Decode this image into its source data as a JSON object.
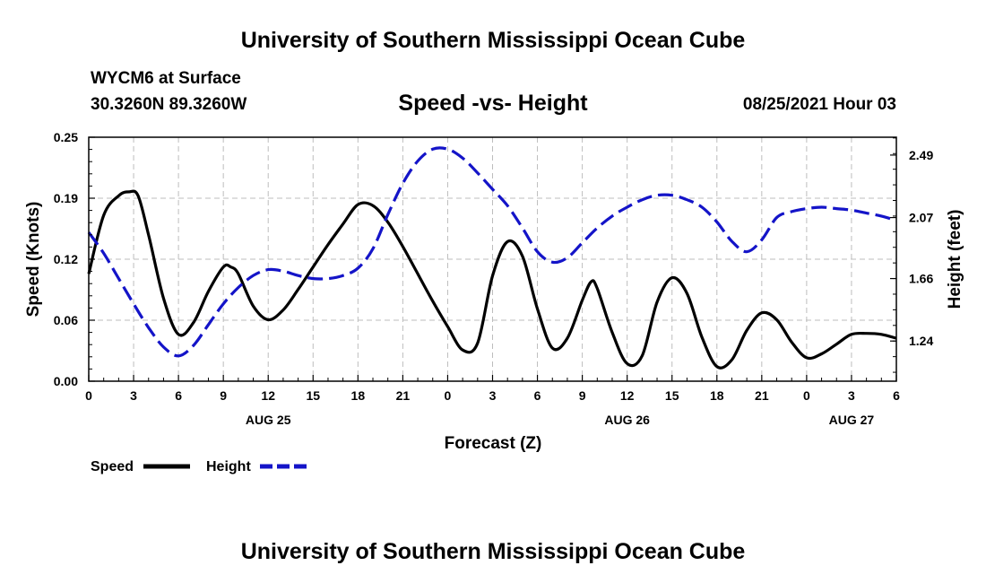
{
  "header": {
    "title": "University of Southern Mississippi Ocean Cube",
    "station": "WYCM6 at Surface",
    "coords": "30.3260N  89.3260W",
    "subtitle": "Speed -vs- Height",
    "datetime": "08/25/2021 Hour 03"
  },
  "footer": {
    "title": "University of Southern Mississippi Ocean Cube"
  },
  "chart_data": {
    "type": "line",
    "title": "Speed -vs- Height",
    "xlabel": "Forecast (Z)",
    "ylabel_left": "Speed (Knots)",
    "ylabel_right": "Height (feet)",
    "xlim": [
      0,
      54
    ],
    "ylim_left": [
      0,
      0.25
    ],
    "ylim_right": [
      0.97,
      2.61
    ],
    "grid": true,
    "colors": {
      "speed": "#000000",
      "height": "#1414c8",
      "grid": "#bdbdbd"
    },
    "x_tick_values": [
      0,
      3,
      6,
      9,
      12,
      15,
      18,
      21,
      24,
      27,
      30,
      33,
      36,
      39,
      42,
      45,
      48,
      51,
      54
    ],
    "x_tick_labels": [
      "0",
      "3",
      "6",
      "9",
      "12",
      "15",
      "18",
      "21",
      "0",
      "3",
      "6",
      "9",
      "12",
      "15",
      "18",
      "21",
      "0",
      "3",
      "6"
    ],
    "day_labels": [
      {
        "x": 12,
        "label": "AUG 25"
      },
      {
        "x": 36,
        "label": "AUG 26"
      },
      {
        "x": 51,
        "label": "AUG 27"
      }
    ],
    "left_ticks": [
      "0.00",
      "0.06",
      "0.12",
      "0.19",
      "0.25"
    ],
    "left_tick_values": [
      0.0,
      0.0625,
      0.125,
      0.1875,
      0.25
    ],
    "right_ticks": [
      "1.24",
      "1.66",
      "2.07",
      "2.49"
    ],
    "right_tick_values": [
      1.24,
      1.66,
      2.07,
      2.49
    ],
    "series": [
      {
        "name": "Speed",
        "axis": "left",
        "style": "solid",
        "x": [
          0,
          1,
          2,
          2.7,
          3.3,
          4,
          5,
          6,
          7,
          8,
          9,
          9.5,
          10,
          11,
          12,
          13,
          14,
          15,
          16,
          17,
          18,
          19,
          20,
          21,
          22,
          23,
          24,
          25,
          26,
          27,
          28,
          29,
          30,
          31,
          32,
          33,
          33.6,
          34,
          35,
          36,
          37,
          38,
          39,
          40,
          41,
          42,
          43,
          44,
          45,
          46,
          47,
          48,
          49,
          50,
          51,
          52,
          53,
          54
        ],
        "values": [
          0.11,
          0.17,
          0.19,
          0.194,
          0.19,
          0.15,
          0.085,
          0.048,
          0.06,
          0.092,
          0.117,
          0.117,
          0.11,
          0.077,
          0.063,
          0.073,
          0.094,
          0.117,
          0.14,
          0.161,
          0.181,
          0.18,
          0.163,
          0.138,
          0.11,
          0.082,
          0.056,
          0.032,
          0.039,
          0.108,
          0.143,
          0.128,
          0.074,
          0.034,
          0.044,
          0.083,
          0.102,
          0.095,
          0.05,
          0.018,
          0.026,
          0.081,
          0.106,
          0.09,
          0.045,
          0.015,
          0.022,
          0.052,
          0.07,
          0.063,
          0.04,
          0.024,
          0.028,
          0.038,
          0.048,
          0.049,
          0.048,
          0.044
        ]
      },
      {
        "name": "Height",
        "axis": "right",
        "style": "dashed",
        "x": [
          0,
          1,
          2,
          3,
          4,
          5,
          6,
          7,
          8,
          9,
          10,
          11,
          12,
          13,
          14,
          15,
          16,
          17,
          18,
          19,
          20,
          21,
          22,
          23,
          24,
          25,
          26,
          27,
          28,
          29,
          30,
          31,
          32,
          33,
          34,
          35,
          36,
          37,
          38,
          39,
          40,
          41,
          42,
          43,
          44,
          45,
          46,
          47,
          48,
          49,
          50,
          51,
          52,
          53,
          54
        ],
        "values": [
          1.97,
          1.83,
          1.66,
          1.49,
          1.33,
          1.2,
          1.14,
          1.21,
          1.35,
          1.49,
          1.6,
          1.68,
          1.72,
          1.71,
          1.68,
          1.66,
          1.66,
          1.68,
          1.73,
          1.86,
          2.09,
          2.3,
          2.45,
          2.53,
          2.53,
          2.47,
          2.37,
          2.26,
          2.15,
          2.0,
          1.84,
          1.77,
          1.8,
          1.9,
          2.0,
          2.08,
          2.14,
          2.19,
          2.22,
          2.22,
          2.19,
          2.14,
          2.04,
          1.91,
          1.84,
          1.92,
          2.07,
          2.11,
          2.13,
          2.14,
          2.13,
          2.12,
          2.1,
          2.08,
          2.05
        ]
      }
    ]
  }
}
